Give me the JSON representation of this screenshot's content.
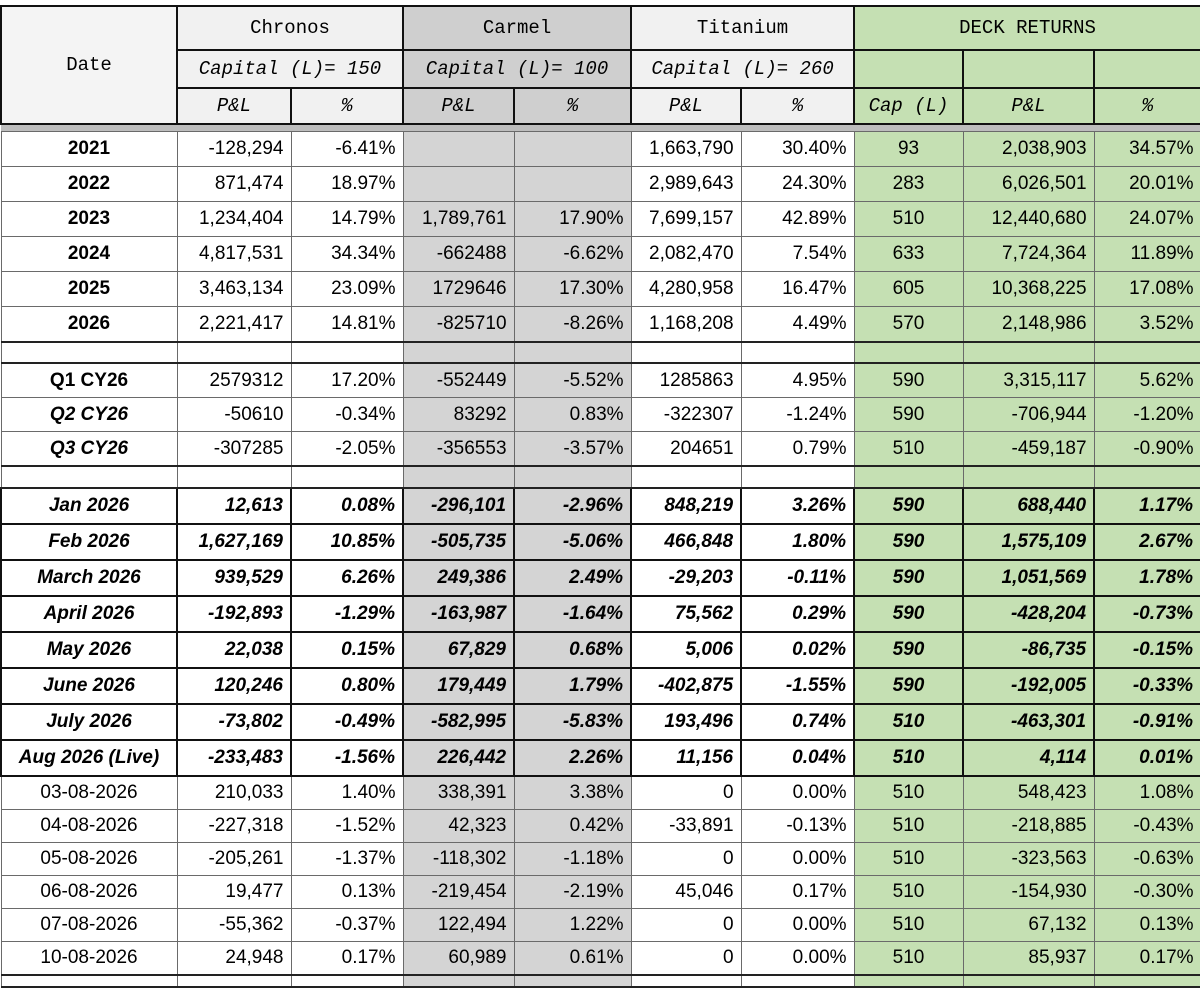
{
  "header": {
    "date": "Date",
    "groups": [
      {
        "name": "Chronos",
        "capital": "Capital (L)= 150"
      },
      {
        "name": "Carmel",
        "capital": "Capital (L)= 100"
      },
      {
        "name": "Titanium",
        "capital": "Capital (L)= 260"
      }
    ],
    "deck": "DECK RETURNS",
    "columns": [
      "P&L",
      "%",
      "P&L",
      "%",
      "P&L",
      "%",
      "Cap (L)",
      "P&L",
      "%"
    ]
  },
  "sections": [
    {
      "rows": [
        [
          "2021",
          "-128,294",
          "-6.41%",
          null,
          null,
          "1,663,790",
          "30.40%",
          "93",
          "2,038,903",
          "34.57%"
        ],
        [
          "2022",
          "871,474",
          "18.97%",
          null,
          null,
          "2,989,643",
          "24.30%",
          "283",
          "6,026,501",
          "20.01%"
        ],
        [
          "2023",
          "1,234,404",
          "14.79%",
          "1,789,761",
          "17.90%",
          "7,699,157",
          "42.89%",
          "510",
          "12,440,680",
          "24.07%"
        ],
        [
          "2024",
          "4,817,531",
          "34.34%",
          "-662488",
          "-6.62%",
          "2,082,470",
          "7.54%",
          "633",
          "7,724,364",
          "11.89%"
        ],
        [
          "2025",
          "3,463,134",
          "23.09%",
          "1729646",
          "17.30%",
          "4,280,958",
          "16.47%",
          "605",
          "10,368,225",
          "17.08%"
        ],
        [
          "2026",
          "2,221,417",
          "14.81%",
          "-825710",
          "-8.26%",
          "1,168,208",
          "4.49%",
          "570",
          "2,148,986",
          "3.52%"
        ]
      ]
    },
    {
      "rows": [
        [
          "Q1 CY26",
          "2579312",
          "17.20%",
          "-552449",
          "-5.52%",
          "1285863",
          "4.95%",
          "590",
          "3,315,117",
          "5.62%"
        ],
        [
          "Q2 CY26",
          "-50610",
          "-0.34%",
          "83292",
          "0.83%",
          "-322307",
          "-1.24%",
          "590",
          "-706,944",
          "-1.20%"
        ],
        [
          "Q3 CY26",
          "-307285",
          "-2.05%",
          "-356553",
          "-3.57%",
          "204651",
          "0.79%",
          "510",
          "-459,187",
          "-0.90%"
        ]
      ]
    },
    {
      "rows": [
        [
          "Jan 2026",
          "12,613",
          "0.08%",
          "-296,101",
          "-2.96%",
          "848,219",
          "3.26%",
          "590",
          "688,440",
          "1.17%"
        ],
        [
          "Feb 2026",
          "1,627,169",
          "10.85%",
          "-505,735",
          "-5.06%",
          "466,848",
          "1.80%",
          "590",
          "1,575,109",
          "2.67%"
        ],
        [
          "March 2026",
          "939,529",
          "6.26%",
          "249,386",
          "2.49%",
          "-29,203",
          "-0.11%",
          "590",
          "1,051,569",
          "1.78%"
        ],
        [
          "April 2026",
          "-192,893",
          "-1.29%",
          "-163,987",
          "-1.64%",
          "75,562",
          "0.29%",
          "590",
          "-428,204",
          "-0.73%"
        ],
        [
          "May 2026",
          "22,038",
          "0.15%",
          "67,829",
          "0.68%",
          "5,006",
          "0.02%",
          "590",
          "-86,735",
          "-0.15%"
        ],
        [
          "June 2026",
          "120,246",
          "0.80%",
          "179,449",
          "1.79%",
          "-402,875",
          "-1.55%",
          "590",
          "-192,005",
          "-0.33%"
        ],
        [
          "July 2026",
          "-73,802",
          "-0.49%",
          "-582,995",
          "-5.83%",
          "193,496",
          "0.74%",
          "510",
          "-463,301",
          "-0.91%"
        ],
        [
          "Aug 2026 (Live)",
          "-233,483",
          "-1.56%",
          "226,442",
          "2.26%",
          "11,156",
          "0.04%",
          "510",
          "4,114",
          "0.01%"
        ]
      ]
    },
    {
      "rows": [
        [
          "03-08-2026",
          "210,033",
          "1.40%",
          "338,391",
          "3.38%",
          "0",
          "0.00%",
          "510",
          "548,423",
          "1.08%"
        ],
        [
          "04-08-2026",
          "-227,318",
          "-1.52%",
          "42,323",
          "0.42%",
          "-33,891",
          "-0.13%",
          "510",
          "-218,885",
          "-0.43%"
        ],
        [
          "05-08-2026",
          "-205,261",
          "-1.37%",
          "-118,302",
          "-1.18%",
          "0",
          "0.00%",
          "510",
          "-323,563",
          "-0.63%"
        ],
        [
          "06-08-2026",
          "19,477",
          "0.13%",
          "-219,454",
          "-2.19%",
          "45,046",
          "0.17%",
          "510",
          "-154,930",
          "-0.30%"
        ],
        [
          "07-08-2026",
          "-55,362",
          "-0.37%",
          "122,494",
          "1.22%",
          "0",
          "0.00%",
          "510",
          "67,132",
          "0.13%"
        ],
        [
          "10-08-2026",
          "24,948",
          "0.17%",
          "60,989",
          "0.61%",
          "0",
          "0.00%",
          "510",
          "85,937",
          "0.17%"
        ]
      ]
    }
  ]
}
